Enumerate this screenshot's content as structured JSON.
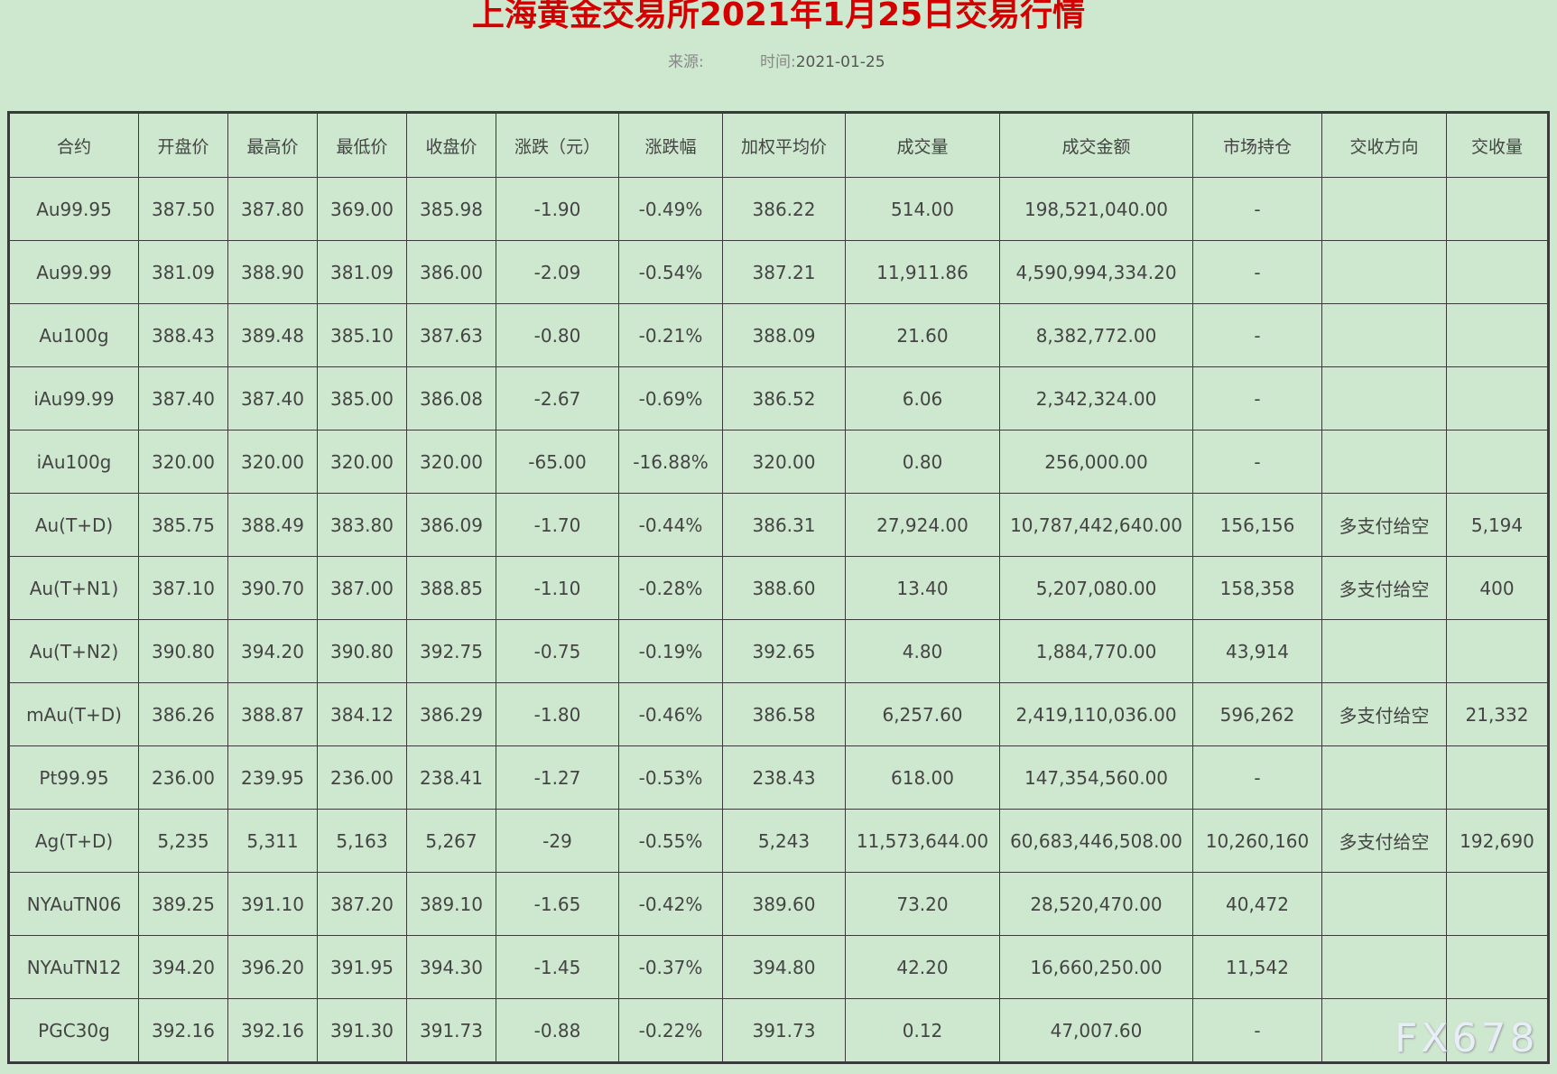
{
  "title": "上海黄金交易所2021年1月25日交易行情",
  "source_label": "来源:",
  "time_label": "时间:",
  "date": "2021-01-25",
  "watermark": "FX678",
  "table": {
    "headers": [
      "合约",
      "开盘价",
      "最高价",
      "最低价",
      "收盘价",
      "涨跌（元）",
      "涨跌幅",
      "加权平均价",
      "成交量",
      "成交金额",
      "市场持仓",
      "交收方向",
      "交收量"
    ],
    "rows": [
      [
        "Au99.95",
        "387.50",
        "387.80",
        "369.00",
        "385.98",
        "-1.90",
        "-0.49%",
        "386.22",
        "514.00",
        "198,521,040.00",
        "-",
        "",
        ""
      ],
      [
        "Au99.99",
        "381.09",
        "388.90",
        "381.09",
        "386.00",
        "-2.09",
        "-0.54%",
        "387.21",
        "11,911.86",
        "4,590,994,334.20",
        "-",
        "",
        ""
      ],
      [
        "Au100g",
        "388.43",
        "389.48",
        "385.10",
        "387.63",
        "-0.80",
        "-0.21%",
        "388.09",
        "21.60",
        "8,382,772.00",
        "-",
        "",
        ""
      ],
      [
        "iAu99.99",
        "387.40",
        "387.40",
        "385.00",
        "386.08",
        "-2.67",
        "-0.69%",
        "386.52",
        "6.06",
        "2,342,324.00",
        "-",
        "",
        ""
      ],
      [
        "iAu100g",
        "320.00",
        "320.00",
        "320.00",
        "320.00",
        "-65.00",
        "-16.88%",
        "320.00",
        "0.80",
        "256,000.00",
        "-",
        "",
        ""
      ],
      [
        "Au(T+D)",
        "385.75",
        "388.49",
        "383.80",
        "386.09",
        "-1.70",
        "-0.44%",
        "386.31",
        "27,924.00",
        "10,787,442,640.00",
        "156,156",
        "多支付给空",
        "5,194"
      ],
      [
        "Au(T+N1)",
        "387.10",
        "390.70",
        "387.00",
        "388.85",
        "-1.10",
        "-0.28%",
        "388.60",
        "13.40",
        "5,207,080.00",
        "158,358",
        "多支付给空",
        "400"
      ],
      [
        "Au(T+N2)",
        "390.80",
        "394.20",
        "390.80",
        "392.75",
        "-0.75",
        "-0.19%",
        "392.65",
        "4.80",
        "1,884,770.00",
        "43,914",
        "",
        ""
      ],
      [
        "mAu(T+D)",
        "386.26",
        "388.87",
        "384.12",
        "386.29",
        "-1.80",
        "-0.46%",
        "386.58",
        "6,257.60",
        "2,419,110,036.00",
        "596,262",
        "多支付给空",
        "21,332"
      ],
      [
        "Pt99.95",
        "236.00",
        "239.95",
        "236.00",
        "238.41",
        "-1.27",
        "-0.53%",
        "238.43",
        "618.00",
        "147,354,560.00",
        "-",
        "",
        ""
      ],
      [
        "Ag(T+D)",
        "5,235",
        "5,311",
        "5,163",
        "5,267",
        "-29",
        "-0.55%",
        "5,243",
        "11,573,644.00",
        "60,683,446,508.00",
        "10,260,160",
        "多支付给空",
        "192,690"
      ],
      [
        "NYAuTN06",
        "389.25",
        "391.10",
        "387.20",
        "389.10",
        "-1.65",
        "-0.42%",
        "389.60",
        "73.20",
        "28,520,470.00",
        "40,472",
        "",
        ""
      ],
      [
        "NYAuTN12",
        "394.20",
        "396.20",
        "391.95",
        "394.30",
        "-1.45",
        "-0.37%",
        "394.80",
        "42.20",
        "16,660,250.00",
        "11,542",
        "",
        ""
      ],
      [
        "PGC30g",
        "392.16",
        "392.16",
        "391.30",
        "391.73",
        "-0.88",
        "-0.22%",
        "391.73",
        "0.12",
        "47,007.60",
        "-",
        "",
        ""
      ]
    ]
  }
}
